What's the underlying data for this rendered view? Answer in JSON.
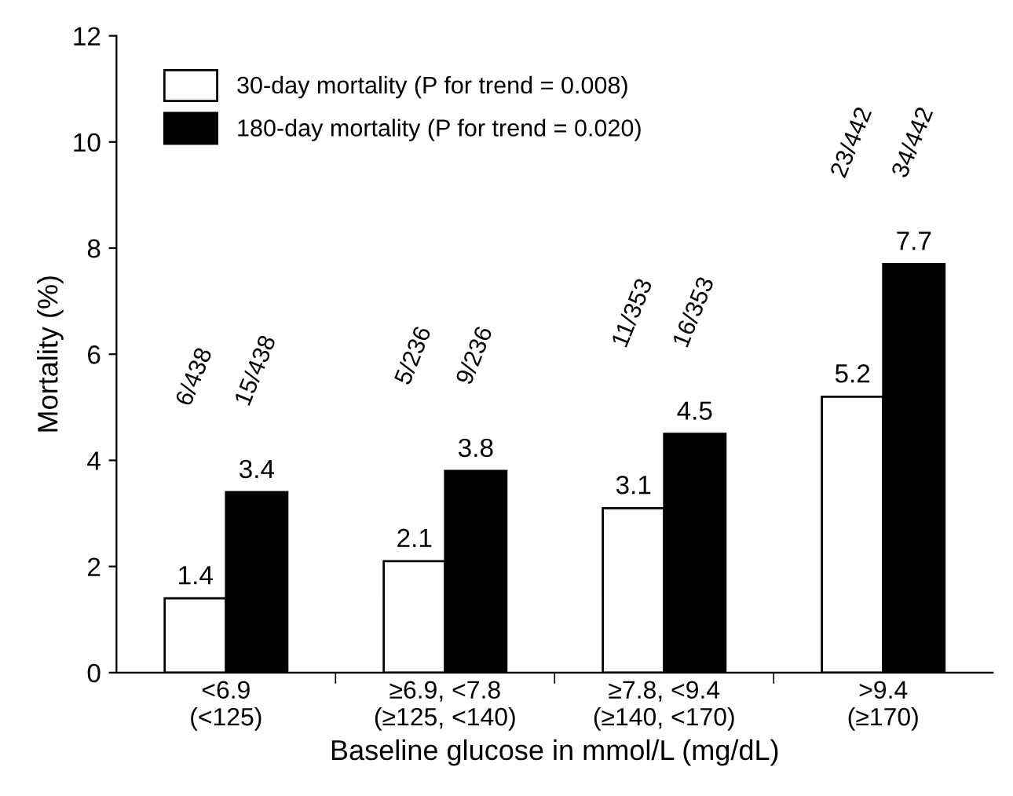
{
  "chart_data": {
    "type": "bar",
    "xlabel": "Baseline glucose in mmol/L (mg/dL)",
    "ylabel": "Mortality (%)",
    "categories": [
      "<6.9\n(<125)",
      "≥6.9, <7.8\n(≥125, <140)",
      "≥7.8, <9.4\n(≥140, <170)",
      ">9.4\n(≥170)"
    ],
    "series": [
      {
        "name": "30-day mortality (P for trend = 0.008)",
        "color": "#ffffff",
        "values": [
          1.4,
          2.1,
          3.1,
          5.2
        ]
      },
      {
        "name": "180-day mortality (P for trend = 0.020)",
        "color": "#000000",
        "values": [
          3.4,
          3.8,
          4.5,
          7.7
        ]
      }
    ],
    "ylim": [
      0,
      12
    ],
    "yticks": [
      0,
      2,
      4,
      6,
      8,
      10,
      12
    ],
    "data_labels": true,
    "grid": false,
    "legend": "top left",
    "annotations": [
      "6/438",
      "15/438",
      "5/236",
      "9/236",
      "11/353",
      "16/353",
      "23/442",
      "34/442"
    ]
  }
}
